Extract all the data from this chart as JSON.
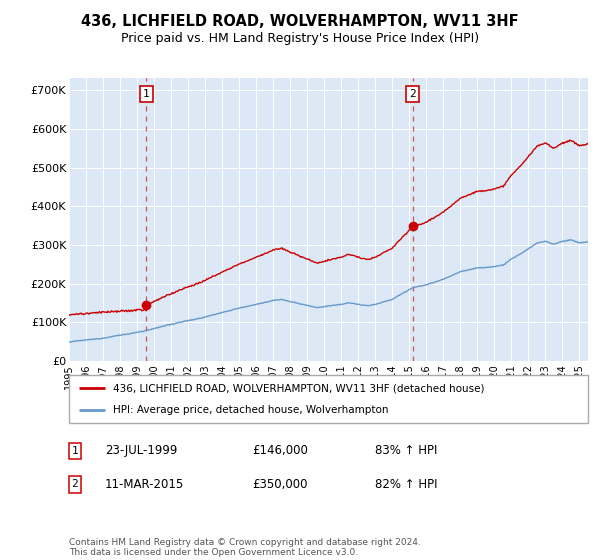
{
  "title": "436, LICHFIELD ROAD, WOLVERHAMPTON, WV11 3HF",
  "subtitle": "Price paid vs. HM Land Registry's House Price Index (HPI)",
  "plot_bg_color": "#dce8f5",
  "ylim": [
    0,
    730000
  ],
  "yticks": [
    0,
    100000,
    200000,
    300000,
    400000,
    500000,
    600000,
    700000
  ],
  "ytick_labels": [
    "£0",
    "£100K",
    "£200K",
    "£300K",
    "£400K",
    "£500K",
    "£600K",
    "£700K"
  ],
  "xlim_start": 1995.0,
  "xlim_end": 2025.5,
  "xticks": [
    1995,
    1996,
    1997,
    1998,
    1999,
    2000,
    2001,
    2002,
    2003,
    2004,
    2005,
    2006,
    2007,
    2008,
    2009,
    2010,
    2011,
    2012,
    2013,
    2014,
    2015,
    2016,
    2017,
    2018,
    2019,
    2020,
    2021,
    2022,
    2023,
    2024,
    2025
  ],
  "purchase1_x": 1999.55,
  "purchase1_y": 146000,
  "purchase2_x": 2015.19,
  "purchase2_y": 350000,
  "legend_line1": "436, LICHFIELD ROAD, WOLVERHAMPTON, WV11 3HF (detached house)",
  "legend_line2": "HPI: Average price, detached house, Wolverhampton",
  "table_row1": [
    "1",
    "23-JUL-1999",
    "£146,000",
    "83% ↑ HPI"
  ],
  "table_row2": [
    "2",
    "11-MAR-2015",
    "£350,000",
    "82% ↑ HPI"
  ],
  "footer": "Contains HM Land Registry data © Crown copyright and database right 2024.\nThis data is licensed under the Open Government Licence v3.0.",
  "red_color": "#cc0000",
  "blue_color": "#6699cc",
  "title_fontsize": 10.5,
  "subtitle_fontsize": 9,
  "hpi_anchors": [
    [
      1995.0,
      50000
    ],
    [
      1997.0,
      60000
    ],
    [
      1999.55,
      79781
    ],
    [
      2001.0,
      95000
    ],
    [
      2003.0,
      115000
    ],
    [
      2005.0,
      138000
    ],
    [
      2007.0,
      158000
    ],
    [
      2007.5,
      160000
    ],
    [
      2008.5,
      150000
    ],
    [
      2009.5,
      140000
    ],
    [
      2010.0,
      142000
    ],
    [
      2011.0,
      148000
    ],
    [
      2011.5,
      152000
    ],
    [
      2012.0,
      148000
    ],
    [
      2012.5,
      145000
    ],
    [
      2013.0,
      148000
    ],
    [
      2013.5,
      155000
    ],
    [
      2014.0,
      162000
    ],
    [
      2015.19,
      192308
    ],
    [
      2016.0,
      200000
    ],
    [
      2017.0,
      215000
    ],
    [
      2018.0,
      235000
    ],
    [
      2019.0,
      245000
    ],
    [
      2020.0,
      248000
    ],
    [
      2020.5,
      252000
    ],
    [
      2021.0,
      268000
    ],
    [
      2022.0,
      295000
    ],
    [
      2022.5,
      310000
    ],
    [
      2023.0,
      315000
    ],
    [
      2023.5,
      308000
    ],
    [
      2024.0,
      315000
    ],
    [
      2024.5,
      318000
    ],
    [
      2025.0,
      310000
    ],
    [
      2025.5,
      312000
    ]
  ]
}
